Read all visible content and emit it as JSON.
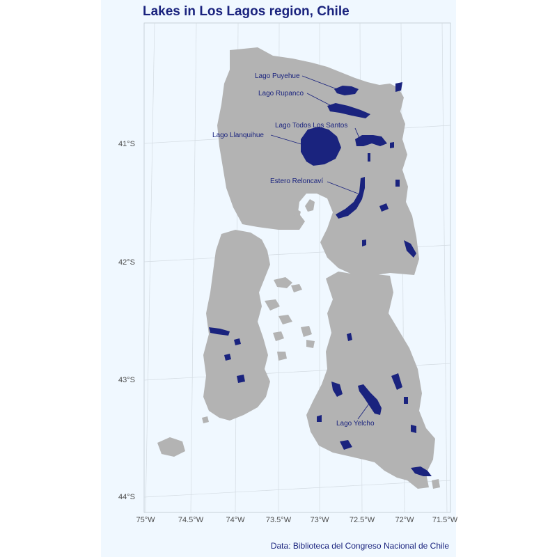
{
  "title": "Lakes in Los Lagos region, Chile",
  "caption": "Data: Biblioteca del Congreso Nacional de Chile",
  "colors": {
    "background": "#f0f8ff",
    "land": "#b3b3b3",
    "lake": "#1a237e",
    "text": "#1a237e",
    "grid": "#d3d3d3"
  },
  "axes": {
    "x_ticks": [
      "75°W",
      "74.5°W",
      "74°W",
      "73.5°W",
      "73°W",
      "72.5°W",
      "72°W",
      "71.5°W"
    ],
    "y_ticks": [
      "41°S",
      "42°S",
      "43°S",
      "44°S"
    ]
  },
  "lakes": [
    {
      "name": "Lago Puyehue"
    },
    {
      "name": "Lago Rupanco"
    },
    {
      "name": "Lago Todos Los Santos"
    },
    {
      "name": "Lago Llanquihue"
    },
    {
      "name": "Estero Reloncaví"
    },
    {
      "name": "Lago Yelcho"
    }
  ]
}
